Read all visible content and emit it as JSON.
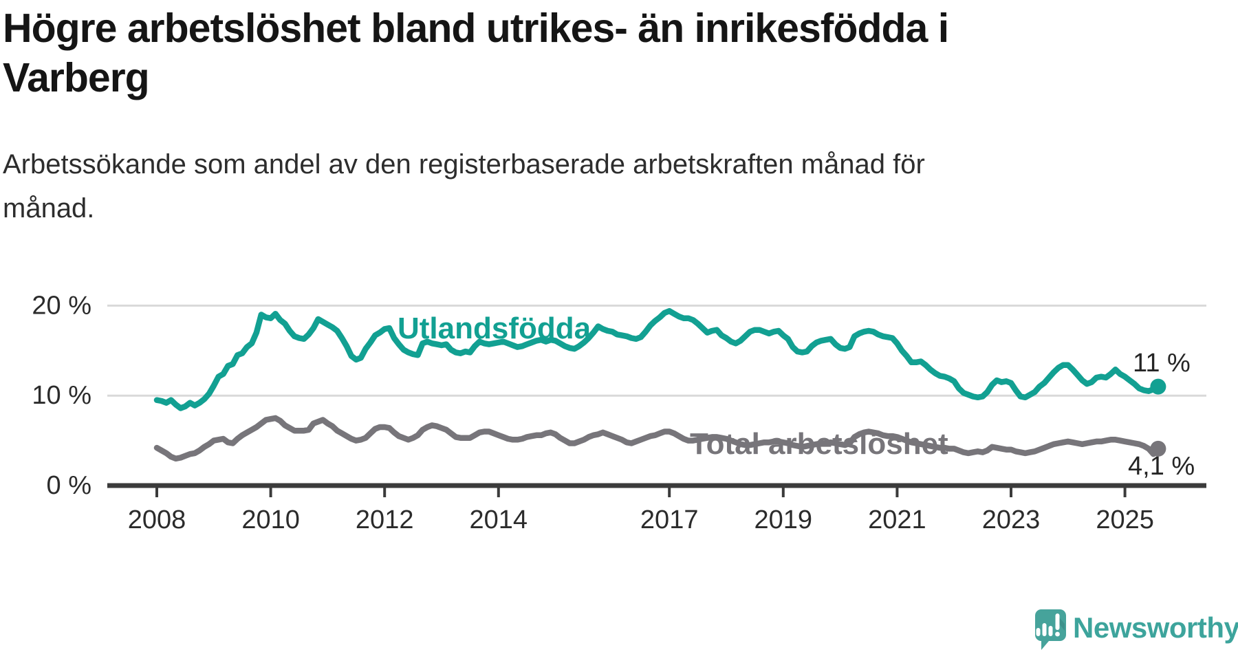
{
  "header": {
    "title_line1": "Högre arbetslöshet bland utrikes- än inrikesfödda i",
    "title_line2": "Varberg",
    "subtitle_line1": "Arbetssökande som andel av den registerbaserade arbetskraften månad för",
    "subtitle_line2": "månad."
  },
  "branding": {
    "logo_name": "Newsworthy",
    "wordmark": "Newsworthy",
    "bubble_color": "#46a39b",
    "wordmark_color": "#3da49c"
  },
  "chart_data": {
    "type": "line",
    "title": "Högre arbetslöshet bland utrikes- än inrikesfödda i Varberg",
    "subtitle": "Arbetssökande som andel av den registerbaserade arbetskraften månad för månad.",
    "frequency": "monthly",
    "x_start": "2008-01",
    "x_end": "2025-08",
    "grid": "horizontal",
    "ylim": [
      0,
      21.5
    ],
    "colors": {
      "grid": "#d9d9d9",
      "axis": "#3b3b3b",
      "tick_text": "#2b2b2b",
      "value_text": "#252525"
    },
    "y_ticks": [
      {
        "value": 0,
        "label": "0 %"
      },
      {
        "value": 10,
        "label": "10 %"
      },
      {
        "value": 20,
        "label": "20 %"
      }
    ],
    "x_ticks": [
      {
        "year": 2008,
        "label": "2008"
      },
      {
        "year": 2010,
        "label": "2010"
      },
      {
        "year": 2012,
        "label": "2012"
      },
      {
        "year": 2014,
        "label": "2014"
      },
      {
        "year": 2017,
        "label": "2017"
      },
      {
        "year": 2019,
        "label": "2019"
      },
      {
        "year": 2021,
        "label": "2021"
      },
      {
        "year": 2023,
        "label": "2023"
      },
      {
        "year": 2025,
        "label": "2025"
      }
    ],
    "series": [
      {
        "name": "Utlandsfödda",
        "color": "#12a092",
        "end_label": "11 %",
        "values": [
          9.5,
          9.4,
          9.2,
          9.5,
          9.0,
          8.6,
          8.8,
          9.2,
          8.9,
          9.2,
          9.6,
          10.2,
          11.1,
          12.1,
          12.4,
          13.3,
          13.5,
          14.5,
          14.7,
          15.4,
          15.8,
          17.0,
          19.0,
          18.7,
          18.6,
          19.1,
          18.4,
          18.0,
          17.2,
          16.6,
          16.4,
          16.3,
          16.8,
          17.5,
          18.5,
          18.2,
          17.9,
          17.6,
          17.2,
          16.4,
          15.5,
          14.4,
          14.0,
          14.2,
          15.2,
          15.9,
          16.7,
          17.0,
          17.4,
          17.5,
          16.4,
          15.7,
          15.1,
          14.8,
          14.6,
          14.5,
          15.8,
          16.0,
          15.8,
          15.7,
          15.6,
          15.7,
          15.1,
          14.8,
          14.7,
          14.9,
          14.8,
          15.5,
          16.0,
          15.8,
          15.7,
          15.8,
          15.9,
          16.0,
          15.8,
          15.6,
          15.4,
          15.5,
          15.7,
          15.9,
          16.1,
          16.2,
          16.0,
          16.2,
          16.1,
          15.8,
          15.5,
          15.3,
          15.2,
          15.5,
          15.9,
          16.4,
          17.0,
          17.7,
          17.4,
          17.2,
          17.1,
          16.8,
          16.7,
          16.6,
          16.4,
          16.3,
          16.5,
          17.1,
          17.8,
          18.3,
          18.7,
          19.2,
          19.4,
          19.1,
          18.8,
          18.6,
          18.6,
          18.4,
          18.0,
          17.5,
          17.0,
          17.2,
          17.3,
          16.7,
          16.4,
          16.0,
          15.8,
          16.1,
          16.6,
          17.1,
          17.3,
          17.3,
          17.1,
          16.9,
          17.1,
          17.2,
          16.7,
          16.3,
          15.4,
          14.9,
          14.8,
          14.9,
          15.5,
          15.9,
          16.1,
          16.2,
          16.3,
          15.7,
          15.3,
          15.2,
          15.4,
          16.6,
          16.9,
          17.1,
          17.2,
          17.1,
          16.8,
          16.6,
          16.5,
          16.4,
          15.8,
          15.0,
          14.4,
          13.7,
          13.7,
          13.8,
          13.4,
          12.9,
          12.5,
          12.2,
          12.1,
          11.9,
          11.6,
          10.8,
          10.3,
          10.1,
          9.9,
          9.8,
          9.9,
          10.4,
          11.2,
          11.7,
          11.5,
          11.6,
          11.4,
          10.6,
          9.9,
          9.8,
          10.1,
          10.4,
          11.0,
          11.4,
          12.0,
          12.6,
          13.1,
          13.4,
          13.4,
          12.9,
          12.3,
          11.7,
          11.3,
          11.5,
          12.0,
          12.1,
          12.0,
          12.4,
          12.9,
          12.4,
          12.1,
          11.7,
          11.3,
          10.8,
          10.6,
          10.5,
          10.7,
          11.0
        ]
      },
      {
        "name": "Total arbetslöshet",
        "color": "#77757a",
        "end_label": "4,1 %",
        "values": [
          4.2,
          3.9,
          3.6,
          3.2,
          3.0,
          3.1,
          3.3,
          3.5,
          3.6,
          3.9,
          4.3,
          4.6,
          5.0,
          5.1,
          5.2,
          4.8,
          4.7,
          5.2,
          5.6,
          5.9,
          6.2,
          6.5,
          6.9,
          7.3,
          7.4,
          7.5,
          7.2,
          6.7,
          6.4,
          6.1,
          6.1,
          6.1,
          6.2,
          6.9,
          7.1,
          7.3,
          6.9,
          6.6,
          6.1,
          5.8,
          5.5,
          5.2,
          5.0,
          5.1,
          5.3,
          5.8,
          6.3,
          6.5,
          6.5,
          6.4,
          5.9,
          5.5,
          5.3,
          5.1,
          5.3,
          5.6,
          6.2,
          6.5,
          6.7,
          6.6,
          6.4,
          6.2,
          5.8,
          5.4,
          5.3,
          5.3,
          5.3,
          5.6,
          5.9,
          6.0,
          6.0,
          5.8,
          5.6,
          5.4,
          5.2,
          5.1,
          5.1,
          5.2,
          5.4,
          5.5,
          5.6,
          5.6,
          5.8,
          5.9,
          5.7,
          5.3,
          5.0,
          4.7,
          4.7,
          4.9,
          5.1,
          5.4,
          5.6,
          5.7,
          5.9,
          5.7,
          5.5,
          5.3,
          5.1,
          4.8,
          4.7,
          4.9,
          5.1,
          5.3,
          5.5,
          5.6,
          5.8,
          6.0,
          6.0,
          5.8,
          5.5,
          5.2,
          5.0,
          5.0,
          5.1,
          5.2,
          5.3,
          5.4,
          5.4,
          5.3,
          5.2,
          5.0,
          4.8,
          4.6,
          4.5,
          4.5,
          4.6,
          4.7,
          4.8,
          4.8,
          4.9,
          4.9,
          4.8,
          4.7,
          4.5,
          4.4,
          4.3,
          4.4,
          4.5,
          4.6,
          4.7,
          4.7,
          4.8,
          4.7,
          4.6,
          4.5,
          4.7,
          5.4,
          5.7,
          5.9,
          6.0,
          5.9,
          5.8,
          5.6,
          5.5,
          5.5,
          5.4,
          5.2,
          5.0,
          4.8,
          4.7,
          4.6,
          4.5,
          4.4,
          4.3,
          4.2,
          4.2,
          4.1,
          4.1,
          3.9,
          3.7,
          3.6,
          3.7,
          3.8,
          3.7,
          3.9,
          4.3,
          4.2,
          4.1,
          4.0,
          4.0,
          3.8,
          3.7,
          3.6,
          3.7,
          3.8,
          4.0,
          4.2,
          4.4,
          4.6,
          4.7,
          4.8,
          4.9,
          4.8,
          4.7,
          4.6,
          4.7,
          4.8,
          4.9,
          4.9,
          5.0,
          5.1,
          5.1,
          5.0,
          4.9,
          4.8,
          4.7,
          4.6,
          4.4,
          4.1,
          3.5,
          4.1
        ]
      }
    ]
  }
}
